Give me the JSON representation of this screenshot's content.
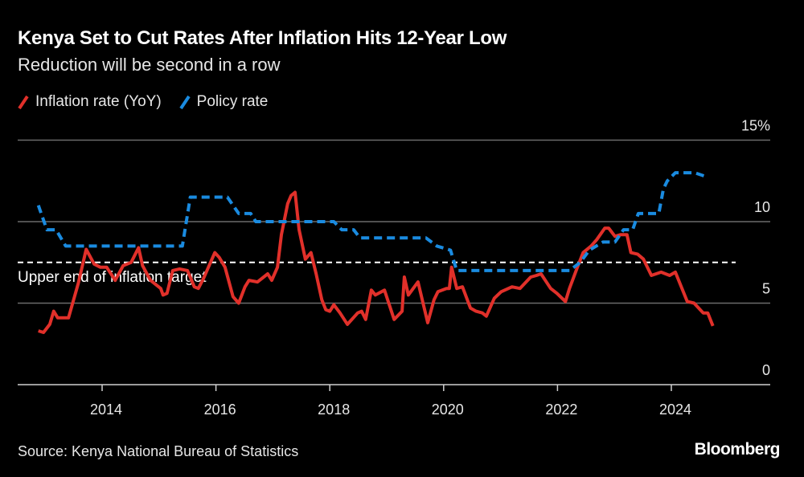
{
  "title": "Kenya Set to Cut Rates After Inflation Hits 12-Year Low",
  "subtitle": "Reduction will be second in a row",
  "source": "Source: Kenya National Bureau of Statistics",
  "logo": "Bloomberg",
  "colors": {
    "inflation": "#e1302a",
    "policy": "#1a8be0",
    "grid": "#6b6b6b",
    "target": "#ffffff"
  },
  "chart_data": {
    "type": "line",
    "title": "Kenya Set to Cut Rates After Inflation Hits 12-Year Low",
    "xlabel": "",
    "ylabel": "",
    "xlim": [
      2012.6,
      2025.75
    ],
    "ylim": [
      0,
      15
    ],
    "x_ticks": [
      2014,
      2016,
      2018,
      2020,
      2022,
      2024
    ],
    "x_tick_labels": [
      "2014",
      "2016",
      "2018",
      "2020",
      "2022",
      "2024"
    ],
    "y_ticks": [
      0,
      5,
      10,
      15
    ],
    "y_tick_labels": [
      "0",
      "5",
      "10",
      "15%"
    ],
    "grid": true,
    "legend_position": "top-left",
    "annotation": {
      "label": "Upper end of inflation target",
      "value": 7.5
    },
    "series": [
      {
        "name": "Inflation rate (YoY)",
        "style": "solid",
        "x": [
          2012.88,
          2012.97,
          2013.08,
          2013.15,
          2013.22,
          2013.41,
          2013.58,
          2013.72,
          2013.86,
          2013.97,
          2014.08,
          2014.23,
          2014.37,
          2014.51,
          2014.64,
          2014.71,
          2014.85,
          2015.03,
          2015.07,
          2015.14,
          2015.24,
          2015.36,
          2015.5,
          2015.62,
          2015.69,
          2015.78,
          2015.98,
          2016.06,
          2016.16,
          2016.3,
          2016.4,
          2016.51,
          2016.58,
          2016.73,
          2016.91,
          2016.98,
          2017.08,
          2017.15,
          2017.26,
          2017.32,
          2017.39,
          2017.46,
          2017.57,
          2017.67,
          2017.76,
          2017.86,
          2017.93,
          2018.0,
          2018.07,
          2018.18,
          2018.31,
          2018.49,
          2018.56,
          2018.63,
          2018.73,
          2018.8,
          2018.96,
          2019.13,
          2019.27,
          2019.31,
          2019.38,
          2019.55,
          2019.72,
          2019.83,
          2019.9,
          2020.05,
          2020.1,
          2020.14,
          2020.23,
          2020.33,
          2020.47,
          2020.57,
          2020.68,
          2020.75,
          2020.89,
          2021.01,
          2021.2,
          2021.34,
          2021.53,
          2021.63,
          2021.71,
          2021.88,
          2021.99,
          2022.14,
          2022.21,
          2022.36,
          2022.45,
          2022.59,
          2022.69,
          2022.83,
          2022.9,
          2023.01,
          2023.11,
          2023.22,
          2023.29,
          2023.41,
          2023.51,
          2023.65,
          2023.82,
          2023.97,
          2024.07,
          2024.28,
          2024.4,
          2024.56,
          2024.64,
          2024.73
        ],
        "values": [
          3.3,
          3.2,
          3.7,
          4.5,
          4.1,
          4.1,
          6.2,
          8.3,
          7.4,
          7.2,
          7.2,
          6.4,
          7.3,
          7.5,
          8.4,
          7.3,
          6.4,
          5.9,
          5.5,
          5.6,
          7.0,
          7.1,
          7.0,
          6.0,
          5.9,
          6.5,
          8.1,
          7.8,
          7.2,
          5.4,
          5.0,
          6.0,
          6.4,
          6.3,
          6.8,
          6.4,
          7.2,
          9.2,
          11.1,
          11.6,
          11.8,
          9.5,
          7.7,
          8.1,
          6.8,
          5.2,
          4.6,
          4.5,
          4.9,
          4.4,
          3.7,
          4.4,
          4.5,
          4.0,
          5.8,
          5.5,
          5.8,
          4.0,
          4.5,
          6.6,
          5.5,
          6.3,
          3.8,
          5.2,
          5.7,
          5.9,
          5.9,
          7.2,
          5.9,
          6.0,
          4.7,
          4.5,
          4.4,
          4.2,
          5.3,
          5.7,
          6.0,
          5.9,
          6.6,
          6.7,
          6.8,
          5.9,
          5.6,
          5.1,
          5.9,
          7.3,
          8.1,
          8.5,
          8.9,
          9.6,
          9.6,
          9.1,
          9.2,
          9.2,
          8.1,
          8.0,
          7.7,
          6.7,
          6.9,
          6.7,
          6.9,
          5.1,
          5.0,
          4.4,
          4.4,
          3.6
        ]
      },
      {
        "name": "Policy rate",
        "style": "dashed",
        "x": [
          2012.88,
          2013.03,
          2013.19,
          2013.36,
          2015.41,
          2015.55,
          2016.2,
          2016.4,
          2016.61,
          2016.7,
          2018.07,
          2018.21,
          2018.42,
          2018.53,
          2019.69,
          2019.88,
          2020.12,
          2020.23,
          2022.21,
          2022.4,
          2022.56,
          2022.8,
          2023.01,
          2023.16,
          2023.32,
          2023.42,
          2023.78,
          2023.86,
          2023.93,
          2024.07,
          2024.41,
          2024.62
        ],
        "values": [
          11.0,
          9.5,
          9.5,
          8.5,
          8.5,
          11.5,
          11.5,
          10.5,
          10.5,
          10.0,
          10.0,
          9.5,
          9.5,
          9.0,
          9.0,
          8.5,
          8.25,
          7.0,
          7.0,
          7.5,
          8.25,
          8.75,
          8.75,
          9.5,
          9.5,
          10.5,
          10.5,
          12.0,
          12.5,
          13.0,
          13.0,
          12.75
        ]
      }
    ]
  }
}
